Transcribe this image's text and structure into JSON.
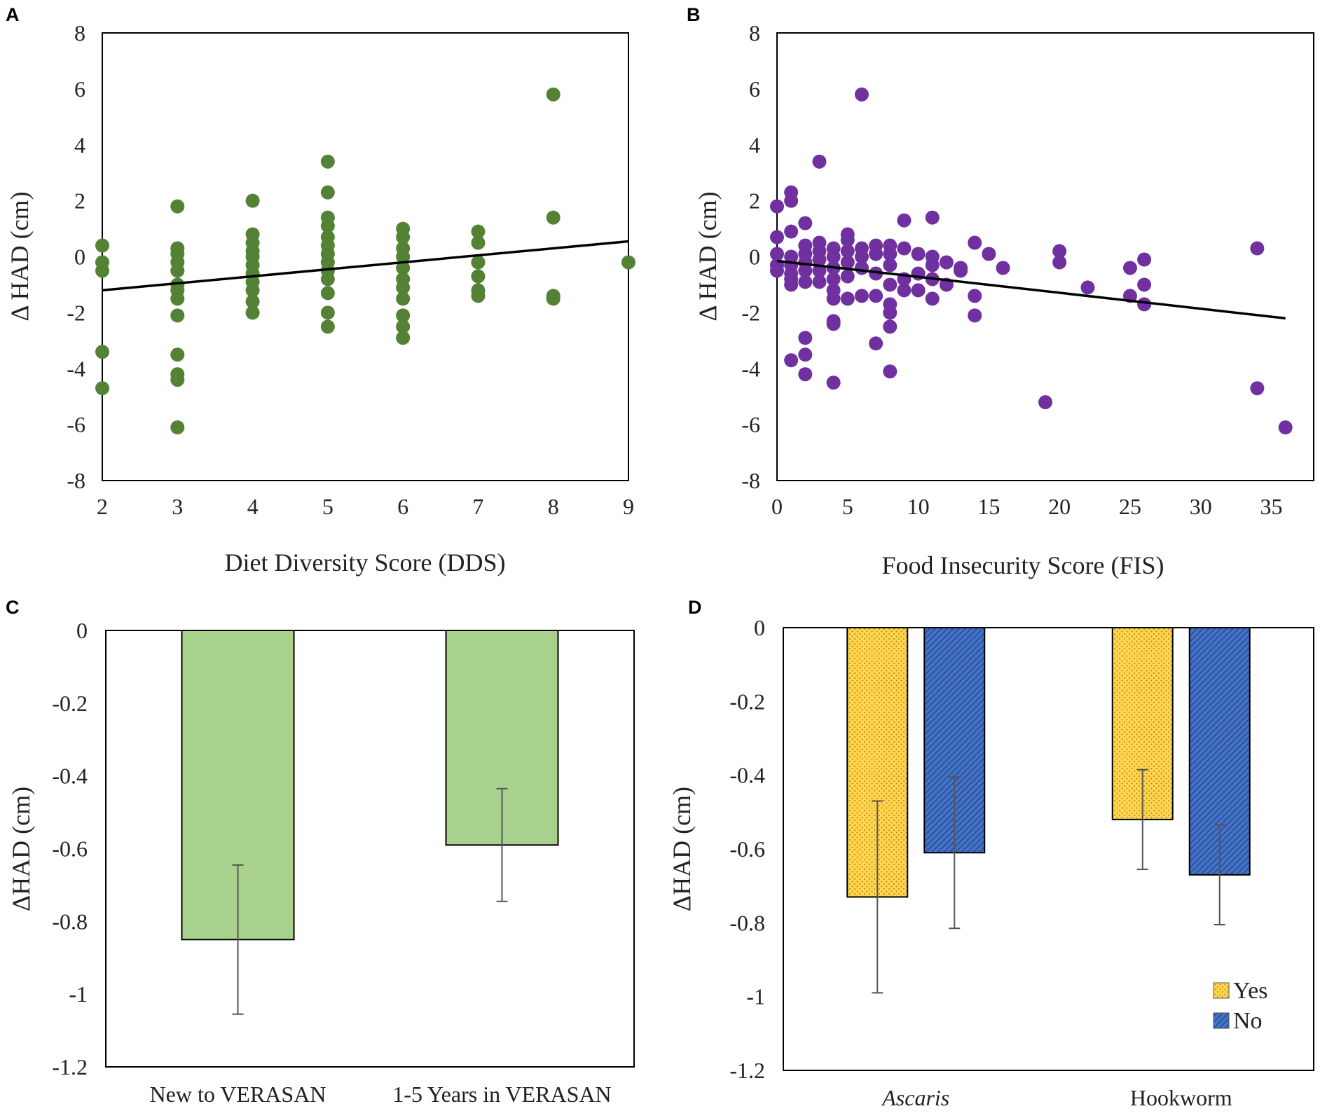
{
  "chart_data": [
    {
      "panel": "A",
      "type": "scatter",
      "xlabel": "Diet Diversity Score (DDS)",
      "ylabel": "Δ HAD (cm)",
      "xlim": [
        2,
        9
      ],
      "ylim": [
        -8,
        8
      ],
      "xticks": [
        "2",
        "3",
        "4",
        "5",
        "6",
        "7",
        "8",
        "9"
      ],
      "yticks": [
        "8",
        "6",
        "4",
        "2",
        "0",
        "-2",
        "-4",
        "-6",
        "-8"
      ],
      "color": "#548235",
      "trendline": {
        "x1": 2,
        "y1": -1.2,
        "x2": 9,
        "y2": 0.55
      },
      "points": [
        [
          2,
          0.4
        ],
        [
          2,
          -0.2
        ],
        [
          2,
          -0.5
        ],
        [
          2,
          -3.4
        ],
        [
          2,
          -4.7
        ],
        [
          3,
          1.8
        ],
        [
          3,
          0.3
        ],
        [
          3,
          0.1
        ],
        [
          3,
          -0.2
        ],
        [
          3,
          -0.5
        ],
        [
          3,
          -1.0
        ],
        [
          3,
          -1.2
        ],
        [
          3,
          -1.5
        ],
        [
          3,
          -2.1
        ],
        [
          3,
          -3.5
        ],
        [
          3,
          -4.2
        ],
        [
          3,
          -4.4
        ],
        [
          3,
          -6.1
        ],
        [
          4,
          2.0
        ],
        [
          4,
          0.8
        ],
        [
          4,
          0.5
        ],
        [
          4,
          0.2
        ],
        [
          4,
          0.0
        ],
        [
          4,
          -0.3
        ],
        [
          4,
          -0.6
        ],
        [
          4,
          -0.9
        ],
        [
          4,
          -1.2
        ],
        [
          4,
          -1.6
        ],
        [
          4,
          -2.0
        ],
        [
          5,
          3.4
        ],
        [
          5,
          2.3
        ],
        [
          5,
          1.4
        ],
        [
          5,
          1.1
        ],
        [
          5,
          0.7
        ],
        [
          5,
          0.4
        ],
        [
          5,
          0.1
        ],
        [
          5,
          -0.2
        ],
        [
          5,
          -0.5
        ],
        [
          5,
          -0.8
        ],
        [
          5,
          -1.3
        ],
        [
          5,
          -2.0
        ],
        [
          5,
          -2.5
        ],
        [
          6,
          1.0
        ],
        [
          6,
          0.7
        ],
        [
          6,
          0.3
        ],
        [
          6,
          0.0
        ],
        [
          6,
          -0.4
        ],
        [
          6,
          -0.8
        ],
        [
          6,
          -1.1
        ],
        [
          6,
          -1.5
        ],
        [
          6,
          -2.1
        ],
        [
          6,
          -2.5
        ],
        [
          6,
          -2.9
        ],
        [
          7,
          0.9
        ],
        [
          7,
          0.5
        ],
        [
          7,
          -0.2
        ],
        [
          7,
          -0.7
        ],
        [
          7,
          -1.2
        ],
        [
          7,
          -1.4
        ],
        [
          8,
          5.8
        ],
        [
          8,
          1.4
        ],
        [
          8,
          -1.4
        ],
        [
          8,
          -1.5
        ],
        [
          9,
          -0.2
        ]
      ]
    },
    {
      "panel": "B",
      "type": "scatter",
      "xlabel": "Food Insecurity Score (FIS)",
      "ylabel": "Δ HAD (cm)",
      "xlim": [
        0,
        38
      ],
      "ylim": [
        -8,
        8
      ],
      "xticks": [
        "0",
        "5",
        "10",
        "15",
        "20",
        "25",
        "30",
        "35"
      ],
      "yticks": [
        "8",
        "6",
        "4",
        "2",
        "0",
        "-2",
        "-4",
        "-6",
        "-8"
      ],
      "color": "#7030A0",
      "trendline": {
        "x1": 0,
        "y1": -0.15,
        "x2": 36,
        "y2": -2.2
      },
      "points": [
        [
          0,
          1.8
        ],
        [
          0,
          0.7
        ],
        [
          0,
          0.1
        ],
        [
          0,
          -0.3
        ],
        [
          0,
          -0.5
        ],
        [
          1,
          2.3
        ],
        [
          1,
          2.0
        ],
        [
          1,
          0.9
        ],
        [
          1,
          0.0
        ],
        [
          1,
          -0.3
        ],
        [
          1,
          -0.6
        ],
        [
          1,
          -0.8
        ],
        [
          1,
          -1.0
        ],
        [
          1,
          -3.7
        ],
        [
          2,
          1.2
        ],
        [
          2,
          0.4
        ],
        [
          2,
          0.1
        ],
        [
          2,
          -0.2
        ],
        [
          2,
          -0.5
        ],
        [
          2,
          -0.9
        ],
        [
          2,
          -2.9
        ],
        [
          2,
          -3.5
        ],
        [
          2,
          -4.2
        ],
        [
          3,
          3.4
        ],
        [
          3,
          0.5
        ],
        [
          3,
          0.2
        ],
        [
          3,
          -0.1
        ],
        [
          3,
          -0.5
        ],
        [
          3,
          -0.9
        ],
        [
          4,
          0.3
        ],
        [
          4,
          0.0
        ],
        [
          4,
          -0.4
        ],
        [
          4,
          -0.8
        ],
        [
          4,
          -1.2
        ],
        [
          4,
          -1.5
        ],
        [
          4,
          -2.3
        ],
        [
          4,
          -2.4
        ],
        [
          4,
          -4.5
        ],
        [
          5,
          0.8
        ],
        [
          5,
          0.6
        ],
        [
          5,
          0.2
        ],
        [
          5,
          -0.2
        ],
        [
          5,
          -0.7
        ],
        [
          5,
          -1.5
        ],
        [
          6,
          5.8
        ],
        [
          6,
          0.3
        ],
        [
          6,
          0.0
        ],
        [
          6,
          -0.4
        ],
        [
          6,
          -1.4
        ],
        [
          7,
          0.4
        ],
        [
          7,
          0.1
        ],
        [
          7,
          -0.6
        ],
        [
          7,
          -1.4
        ],
        [
          7,
          -3.1
        ],
        [
          8,
          0.4
        ],
        [
          8,
          0.1
        ],
        [
          8,
          -0.3
        ],
        [
          8,
          -1.0
        ],
        [
          8,
          -1.7
        ],
        [
          8,
          -2.0
        ],
        [
          8,
          -2.5
        ],
        [
          8,
          -4.1
        ],
        [
          9,
          1.3
        ],
        [
          9,
          0.3
        ],
        [
          9,
          -0.8
        ],
        [
          9,
          -1.2
        ],
        [
          10,
          0.1
        ],
        [
          10,
          -0.6
        ],
        [
          10,
          -1.2
        ],
        [
          11,
          1.4
        ],
        [
          11,
          0.0
        ],
        [
          11,
          -0.3
        ],
        [
          11,
          -0.8
        ],
        [
          11,
          -1.5
        ],
        [
          12,
          -0.2
        ],
        [
          12,
          -1.0
        ],
        [
          13,
          -0.4
        ],
        [
          13,
          -0.5
        ],
        [
          14,
          0.5
        ],
        [
          14,
          -1.4
        ],
        [
          14,
          -2.1
        ],
        [
          15,
          0.1
        ],
        [
          16,
          -0.4
        ],
        [
          19,
          -5.2
        ],
        [
          20,
          0.2
        ],
        [
          20,
          -0.2
        ],
        [
          22,
          -1.1
        ],
        [
          25,
          -0.4
        ],
        [
          25,
          -1.4
        ],
        [
          26,
          -0.1
        ],
        [
          26,
          -1.0
        ],
        [
          26,
          -1.7
        ],
        [
          34,
          0.3
        ],
        [
          34,
          -4.7
        ],
        [
          36,
          -6.1
        ]
      ]
    },
    {
      "panel": "C",
      "type": "bar",
      "ylabel": "ΔHAD (cm)",
      "ylim": [
        -1.2,
        0
      ],
      "yticks": [
        "0",
        "-0.2",
        "-0.4",
        "-0.6",
        "-0.8",
        "-1",
        "-1.2"
      ],
      "categories": [
        "New to VERASAN",
        "1-5 Years in VERASAN"
      ],
      "values": [
        -0.85,
        -0.59
      ],
      "errors": [
        0.205,
        0.155
      ],
      "color": "#A9D18E"
    },
    {
      "panel": "D",
      "type": "bar",
      "ylabel": "ΔHAD (cm)",
      "ylim": [
        -1.2,
        0
      ],
      "yticks": [
        "0",
        "-0.2",
        "-0.4",
        "-0.6",
        "-0.8",
        "-1",
        "-1.2"
      ],
      "categories": [
        "Ascaris",
        "Hookworm"
      ],
      "series": [
        {
          "name": "Yes",
          "values": [
            -0.73,
            -0.52
          ],
          "errors": [
            0.26,
            0.135
          ],
          "color": "#FFD54F"
        },
        {
          "name": "No",
          "values": [
            -0.61,
            -0.67
          ],
          "errors": [
            0.205,
            0.135
          ],
          "color": "#4472C4"
        }
      ]
    }
  ]
}
